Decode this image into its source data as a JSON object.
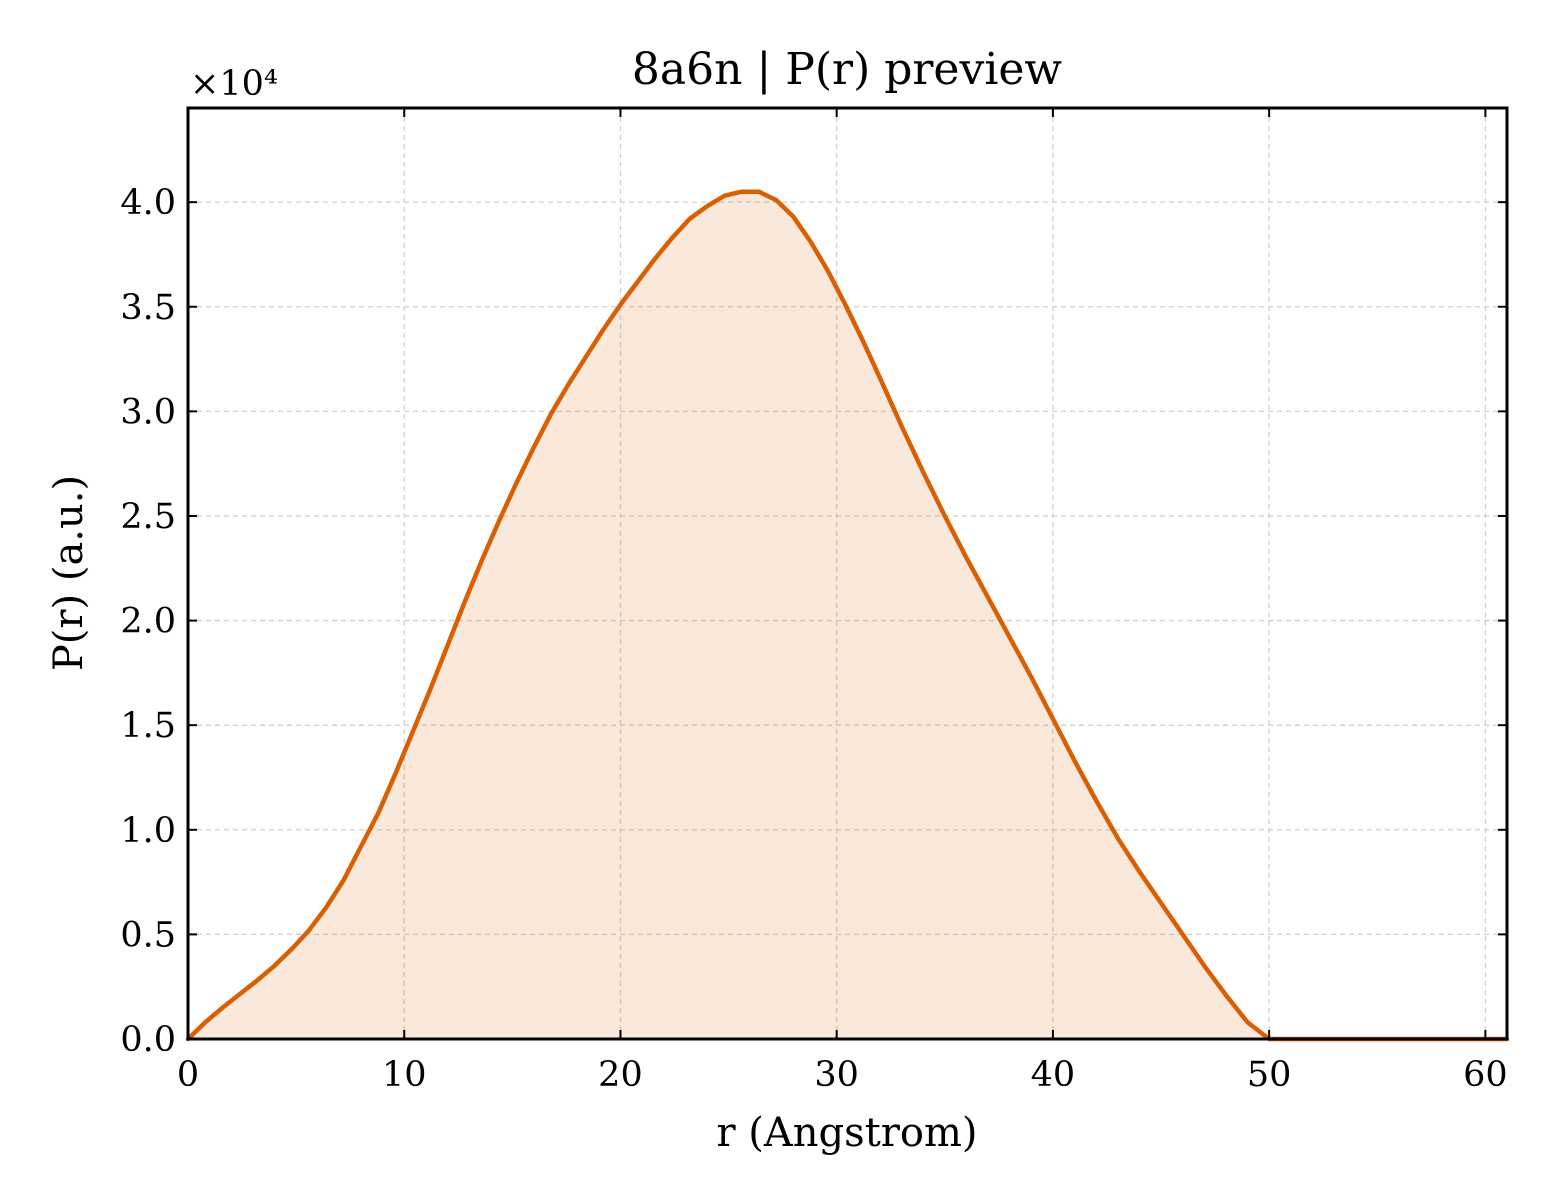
{
  "chart_data": {
    "type": "area",
    "title": "8a6n | P(r) preview",
    "xlabel": "r (Angstrom)",
    "ylabel": "P(r) (a.u.)",
    "y_offset_label": "×10⁴",
    "y_scale_factor": 10000,
    "xlim": [
      0,
      61
    ],
    "ylim": [
      0,
      44500
    ],
    "xticks": [
      0,
      10,
      20,
      30,
      40,
      50,
      60
    ],
    "xtick_labels": [
      "0",
      "10",
      "20",
      "30",
      "40",
      "50",
      "60"
    ],
    "yticks": [
      0,
      5000,
      10000,
      15000,
      20000,
      25000,
      30000,
      35000,
      40000
    ],
    "ytick_labels": [
      "0.0",
      "0.5",
      "1.0",
      "1.5",
      "2.0",
      "2.5",
      "3.0",
      "3.5",
      "4.0"
    ],
    "grid": true,
    "line_color": "#d95f02",
    "fill_color": "#d95f02",
    "fill_opacity": 0.14,
    "series": [
      {
        "x": [
          0,
          0.8,
          1.6,
          2.4,
          3.2,
          4.0,
          4.8,
          5.6,
          6.4,
          7.2,
          8.0,
          8.8,
          9.6,
          10.4,
          11.2,
          12.0,
          12.8,
          13.6,
          14.4,
          15.2,
          16.0,
          16.8,
          17.6,
          18.4,
          19.2,
          20.0,
          20.8,
          21.6,
          22.4,
          23.2,
          24.0,
          24.8,
          25.6,
          26.4,
          27.2,
          28.0,
          28.8,
          29.6,
          30.4,
          31.2,
          32.0,
          33.0,
          34.0,
          35.0,
          36.0,
          37.0,
          38.0,
          39.0,
          40.0,
          41.0,
          42.0,
          43.0,
          44.0,
          45.0,
          46.0,
          47.0,
          48.0,
          49.0,
          50.0,
          51.0,
          52.0,
          53.0,
          54.0,
          55.0,
          56.0,
          57.0,
          58.0,
          59.0,
          60.0,
          61.0
        ],
        "y": [
          0,
          800,
          1500,
          2150,
          2800,
          3500,
          4300,
          5200,
          6300,
          7600,
          9200,
          10800,
          12700,
          14700,
          16700,
          18800,
          20900,
          22900,
          24800,
          26600,
          28300,
          29900,
          31300,
          32600,
          33900,
          35100,
          36200,
          37300,
          38300,
          39200,
          39800,
          40300,
          40500,
          40500,
          40100,
          39300,
          38100,
          36700,
          35100,
          33400,
          31600,
          29300,
          27100,
          25000,
          23000,
          21100,
          19200,
          17300,
          15300,
          13300,
          11400,
          9600,
          8000,
          6500,
          5000,
          3500,
          2100,
          800,
          0,
          0,
          0,
          0,
          0,
          0,
          0,
          0,
          0,
          0,
          0,
          0
        ]
      }
    ]
  }
}
